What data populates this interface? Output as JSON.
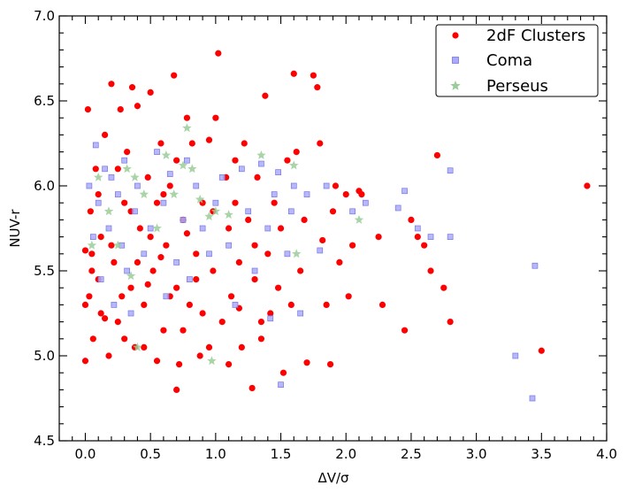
{
  "chart_data": {
    "type": "scatter",
    "xlabel": "ΔV/σ",
    "ylabel": "NUV-r",
    "xlim": [
      -0.2,
      4.0
    ],
    "ylim": [
      4.5,
      7.0
    ],
    "xticks": [
      "0.0",
      "0.5",
      "1.0",
      "1.5",
      "2.0",
      "2.5",
      "3.0",
      "3.5",
      "4.0"
    ],
    "yticks": [
      "4.5",
      "5.0",
      "5.5",
      "6.0",
      "6.5",
      "7.0"
    ],
    "legend_position": "top-right",
    "series": [
      {
        "name": "2dF Clusters",
        "marker": "circle",
        "color": "#ff0000",
        "points": [
          [
            0.02,
            6.45
          ],
          [
            0.03,
            5.35
          ],
          [
            0.04,
            5.85
          ],
          [
            0.05,
            5.6
          ],
          [
            0.06,
            5.1
          ],
          [
            0.08,
            6.1
          ],
          [
            0.1,
            5.45
          ],
          [
            0.12,
            5.7
          ],
          [
            0.15,
            6.3
          ],
          [
            0.18,
            5.0
          ],
          [
            0.2,
            6.6
          ],
          [
            0.22,
            5.55
          ],
          [
            0.25,
            5.2
          ],
          [
            0.27,
            6.45
          ],
          [
            0.3,
            5.9
          ],
          [
            0.32,
            6.2
          ],
          [
            0.35,
            5.4
          ],
          [
            0.36,
            6.58
          ],
          [
            0.38,
            5.05
          ],
          [
            0.4,
            6.47
          ],
          [
            0.42,
            5.75
          ],
          [
            0.45,
            5.3
          ],
          [
            0.48,
            6.05
          ],
          [
            0.5,
            6.55
          ],
          [
            0.52,
            5.5
          ],
          [
            0.55,
            5.9
          ],
          [
            0.58,
            6.25
          ],
          [
            0.6,
            5.15
          ],
          [
            0.62,
            5.65
          ],
          [
            0.65,
            6.0
          ],
          [
            0.68,
            6.65
          ],
          [
            0.7,
            5.4
          ],
          [
            0.72,
            4.95
          ],
          [
            0.75,
            5.8
          ],
          [
            0.78,
            6.4
          ],
          [
            0.8,
            5.3
          ],
          [
            0.82,
            6.25
          ],
          [
            0.85,
            5.6
          ],
          [
            0.88,
            5.0
          ],
          [
            0.9,
            5.9
          ],
          [
            0.95,
            6.27
          ],
          [
            0.98,
            5.5
          ],
          [
            1.0,
            6.4
          ],
          [
            1.02,
            6.78
          ],
          [
            1.05,
            5.2
          ],
          [
            1.08,
            6.05
          ],
          [
            1.1,
            5.75
          ],
          [
            1.12,
            5.35
          ],
          [
            1.15,
            6.15
          ],
          [
            1.18,
            5.55
          ],
          [
            1.2,
            5.05
          ],
          [
            1.22,
            6.25
          ],
          [
            1.25,
            5.8
          ],
          [
            1.28,
            4.81
          ],
          [
            1.3,
            5.45
          ],
          [
            1.32,
            6.05
          ],
          [
            1.35,
            5.1
          ],
          [
            1.38,
            6.53
          ],
          [
            1.4,
            5.6
          ],
          [
            1.42,
            5.25
          ],
          [
            1.45,
            5.9
          ],
          [
            1.48,
            5.4
          ],
          [
            1.5,
            5.75
          ],
          [
            1.52,
            4.9
          ],
          [
            1.55,
            6.15
          ],
          [
            1.58,
            5.3
          ],
          [
            1.6,
            6.66
          ],
          [
            1.62,
            6.2
          ],
          [
            1.65,
            5.5
          ],
          [
            1.68,
            5.8
          ],
          [
            1.7,
            4.96
          ],
          [
            1.75,
            6.65
          ],
          [
            1.78,
            6.58
          ],
          [
            1.8,
            6.25
          ],
          [
            1.82,
            5.68
          ],
          [
            1.85,
            5.3
          ],
          [
            1.88,
            4.95
          ],
          [
            1.9,
            5.85
          ],
          [
            1.92,
            6.0
          ],
          [
            1.95,
            5.55
          ],
          [
            2.0,
            5.95
          ],
          [
            2.02,
            5.35
          ],
          [
            2.05,
            5.65
          ],
          [
            2.1,
            5.97
          ],
          [
            2.12,
            5.95
          ],
          [
            2.25,
            5.7
          ],
          [
            2.28,
            5.3
          ],
          [
            2.45,
            5.15
          ],
          [
            2.5,
            5.8
          ],
          [
            2.55,
            5.7
          ],
          [
            2.6,
            5.65
          ],
          [
            2.65,
            5.5
          ],
          [
            2.7,
            6.18
          ],
          [
            2.75,
            5.4
          ],
          [
            2.8,
            5.2
          ],
          [
            3.5,
            5.03
          ],
          [
            3.85,
            6.0
          ],
          [
            0.7,
            4.8
          ],
          [
            0.15,
            5.22
          ],
          [
            0.45,
            5.05
          ],
          [
            0.0,
            4.97
          ],
          [
            0.0,
            5.3
          ],
          [
            0.0,
            5.62
          ],
          [
            0.1,
            5.95
          ],
          [
            0.3,
            5.1
          ],
          [
            0.55,
            4.97
          ],
          [
            0.75,
            5.15
          ],
          [
            0.95,
            5.05
          ],
          [
            1.1,
            4.95
          ],
          [
            1.35,
            5.2
          ],
          [
            0.5,
            5.7
          ],
          [
            0.6,
            5.95
          ],
          [
            0.35,
            5.85
          ],
          [
            0.25,
            6.1
          ],
          [
            0.85,
            5.45
          ],
          [
            0.65,
            5.35
          ],
          [
            0.4,
            5.55
          ],
          [
            0.2,
            5.65
          ],
          [
            1.15,
            5.9
          ],
          [
            1.3,
            5.65
          ],
          [
            0.9,
            5.25
          ],
          [
            0.7,
            6.15
          ],
          [
            0.05,
            5.5
          ],
          [
            0.12,
            5.25
          ],
          [
            0.28,
            5.35
          ],
          [
            0.48,
            5.42
          ],
          [
            0.58,
            5.58
          ],
          [
            0.78,
            5.72
          ],
          [
            0.98,
            5.85
          ],
          [
            1.18,
            5.28
          ]
        ]
      },
      {
        "name": "Coma",
        "marker": "square",
        "color": "#9999ee",
        "points": [
          [
            0.03,
            6.0
          ],
          [
            0.06,
            5.7
          ],
          [
            0.08,
            6.24
          ],
          [
            0.1,
            5.9
          ],
          [
            0.12,
            5.45
          ],
          [
            0.15,
            6.1
          ],
          [
            0.18,
            5.75
          ],
          [
            0.2,
            6.05
          ],
          [
            0.22,
            5.3
          ],
          [
            0.25,
            5.95
          ],
          [
            0.28,
            5.65
          ],
          [
            0.3,
            6.15
          ],
          [
            0.32,
            5.5
          ],
          [
            0.35,
            5.25
          ],
          [
            0.38,
            5.85
          ],
          [
            0.4,
            6.0
          ],
          [
            0.45,
            5.6
          ],
          [
            0.5,
            5.75
          ],
          [
            0.55,
            6.2
          ],
          [
            0.6,
            5.9
          ],
          [
            0.62,
            5.35
          ],
          [
            0.65,
            6.07
          ],
          [
            0.7,
            5.55
          ],
          [
            0.75,
            5.8
          ],
          [
            0.78,
            6.15
          ],
          [
            0.8,
            5.45
          ],
          [
            0.85,
            6.0
          ],
          [
            0.9,
            5.75
          ],
          [
            0.95,
            5.6
          ],
          [
            1.0,
            5.9
          ],
          [
            1.05,
            6.05
          ],
          [
            1.1,
            5.65
          ],
          [
            1.15,
            5.3
          ],
          [
            1.2,
            6.1
          ],
          [
            1.25,
            5.85
          ],
          [
            1.3,
            5.5
          ],
          [
            1.35,
            6.13
          ],
          [
            1.4,
            5.75
          ],
          [
            1.42,
            5.22
          ],
          [
            1.45,
            5.95
          ],
          [
            1.48,
            6.08
          ],
          [
            1.5,
            4.83
          ],
          [
            1.55,
            5.6
          ],
          [
            1.58,
            5.85
          ],
          [
            1.6,
            6.0
          ],
          [
            1.65,
            5.25
          ],
          [
            1.7,
            5.95
          ],
          [
            1.8,
            5.62
          ],
          [
            1.85,
            6.0
          ],
          [
            2.05,
            5.85
          ],
          [
            2.15,
            5.9
          ],
          [
            2.4,
            5.87
          ],
          [
            2.45,
            5.97
          ],
          [
            2.55,
            5.75
          ],
          [
            2.65,
            5.7
          ],
          [
            2.8,
            6.09
          ],
          [
            2.8,
            5.7
          ],
          [
            3.3,
            5.0
          ],
          [
            3.43,
            4.75
          ],
          [
            3.45,
            5.53
          ]
        ]
      },
      {
        "name": "Perseus",
        "marker": "star",
        "color": "#99cc99",
        "points": [
          [
            0.05,
            5.65
          ],
          [
            0.1,
            6.05
          ],
          [
            0.18,
            5.85
          ],
          [
            0.25,
            5.65
          ],
          [
            0.32,
            6.1
          ],
          [
            0.38,
            6.05
          ],
          [
            0.45,
            5.95
          ],
          [
            0.55,
            5.75
          ],
          [
            0.62,
            6.18
          ],
          [
            0.68,
            5.95
          ],
          [
            0.75,
            6.12
          ],
          [
            0.78,
            6.34
          ],
          [
            0.82,
            6.1
          ],
          [
            0.88,
            5.92
          ],
          [
            0.95,
            5.82
          ],
          [
            1.0,
            5.85
          ],
          [
            1.1,
            5.83
          ],
          [
            1.35,
            6.18
          ],
          [
            1.6,
            6.12
          ],
          [
            1.62,
            5.6
          ],
          [
            2.1,
            5.8
          ],
          [
            0.4,
            5.05
          ],
          [
            0.97,
            4.97
          ],
          [
            0.35,
            5.47
          ]
        ]
      }
    ]
  }
}
